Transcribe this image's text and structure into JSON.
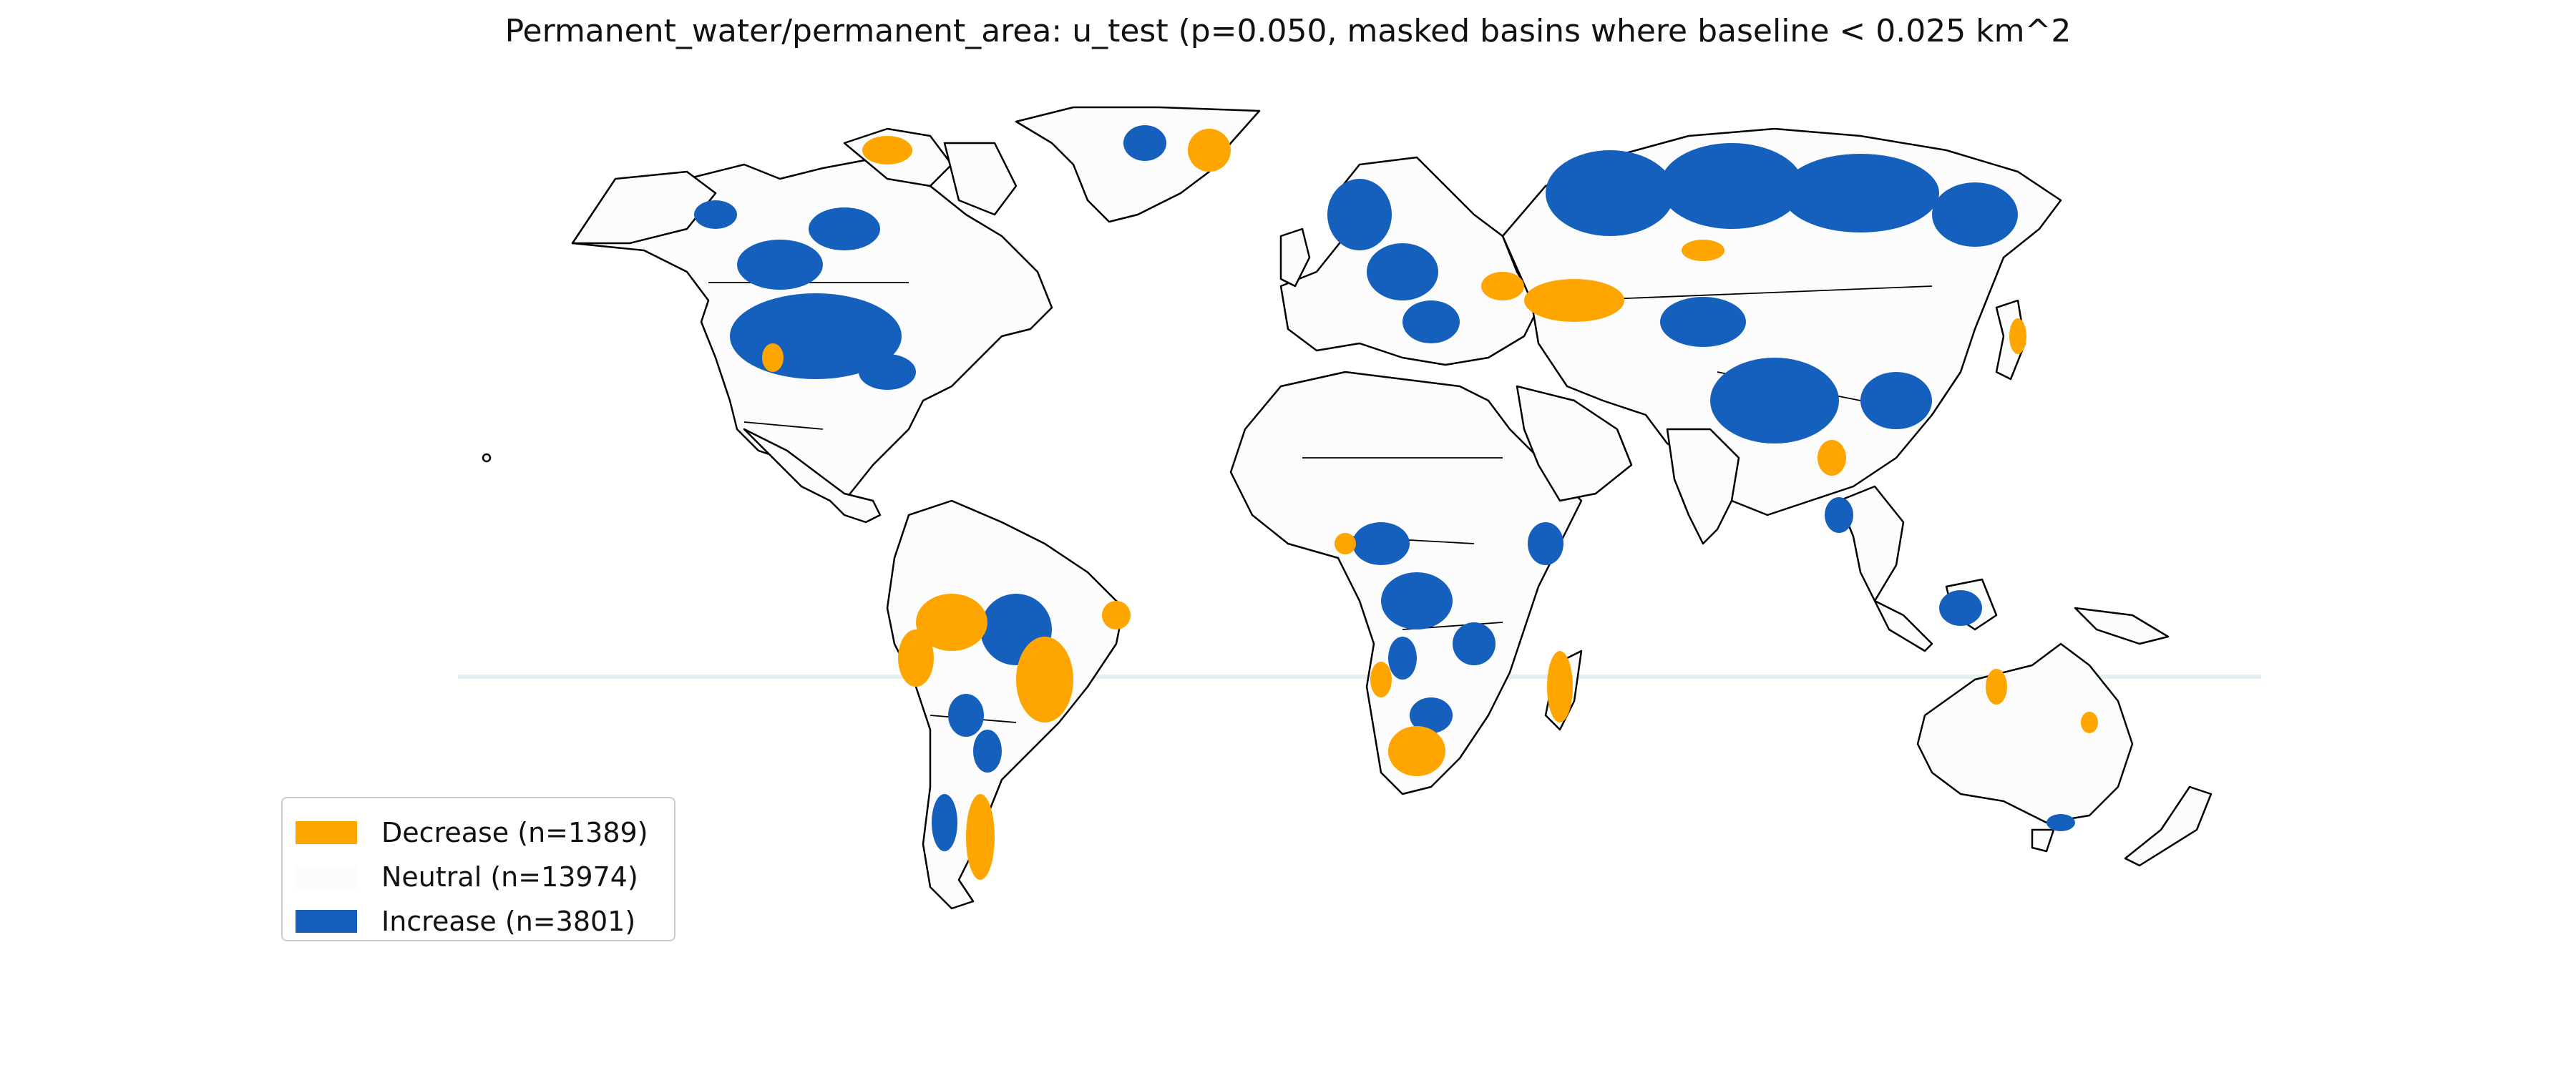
{
  "title": "Permanent_water/permanent_area: u_test (p=0.050, masked basins where baseline < 0.025 km^2",
  "legend": {
    "items": [
      {
        "key": "decrease",
        "label": "Decrease (n=1389)",
        "color": "#ffa500"
      },
      {
        "key": "neutral",
        "label": "Neutral (n=13974)",
        "color": "#fcfcfc"
      },
      {
        "key": "increase",
        "label": "Increase (n=3801)",
        "color": "#1560bd"
      }
    ]
  },
  "colors": {
    "decrease": "#ffa500",
    "increase": "#1560bd",
    "neutral": "#fcfcfc",
    "boundary": "#000000",
    "equator": "#e3eef0"
  }
}
